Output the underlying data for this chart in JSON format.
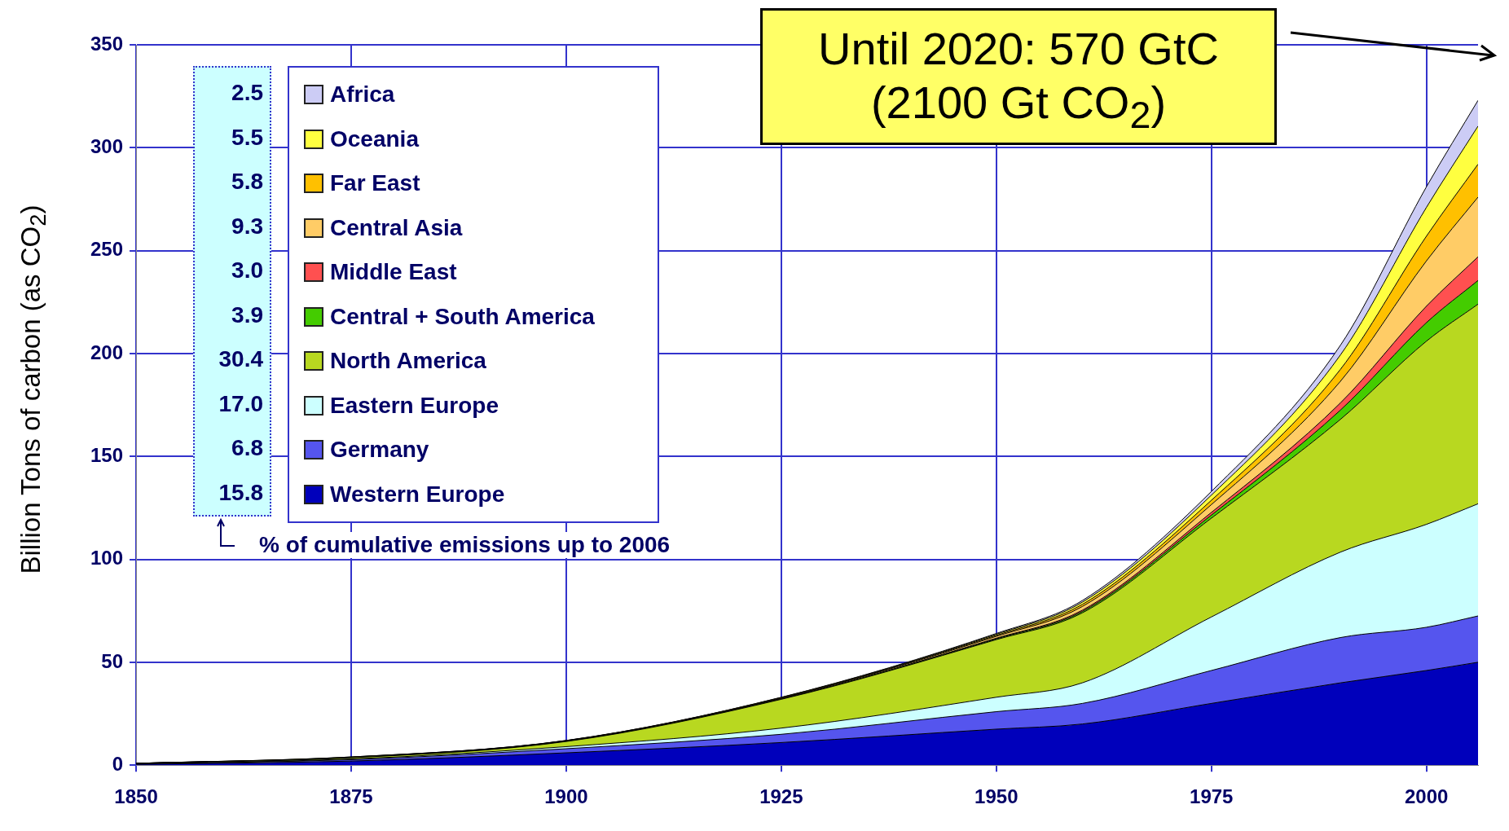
{
  "chart_data": {
    "type": "area",
    "ylabel": "Billion Tons of carbon (as CO$_{2}$)",
    "stacked": true,
    "grid": true,
    "legend": "top left",
    "x": [
      1850,
      1875,
      1900,
      1925,
      1950,
      1960,
      1975,
      1990,
      2000,
      2006
    ],
    "xlim": [
      1850,
      2006
    ],
    "xticks": [
      1850,
      1875,
      1900,
      1925,
      1950,
      1975,
      2000
    ],
    "ylim": [
      0,
      350
    ],
    "yticks": [
      0,
      50,
      100,
      150,
      200,
      250,
      300,
      350
    ],
    "series": [
      {
        "name": "Western Europe",
        "color": "#0000bb",
        "values": [
          0.4,
          2,
          6,
          11,
          17.5,
          20,
          30,
          40,
          46,
          50
        ]
      },
      {
        "name": "Germany",
        "color": "#5555ee",
        "values": [
          0.2,
          0.7,
          2,
          4,
          8.5,
          10,
          16,
          22,
          21,
          22.5
        ]
      },
      {
        "name": "Eastern Europe",
        "color": "#ccffff",
        "values": [
          0.1,
          0.3,
          1,
          3,
          7,
          10,
          26,
          41.5,
          50,
          54.5
        ]
      },
      {
        "name": "North America",
        "color": "#b8d820",
        "values": [
          0.1,
          0.6,
          2.5,
          14,
          28,
          34,
          48,
          64.5,
          89,
          97
        ]
      },
      {
        "name": "Central + South America",
        "color": "#44cc00",
        "values": [
          0,
          0.1,
          0.1,
          0.1,
          0.4,
          0.7,
          1.5,
          4.5,
          9,
          11.5
        ]
      },
      {
        "name": "Middle East",
        "color": "#ff5050",
        "values": [
          0,
          0,
          0,
          0.1,
          0.3,
          0.6,
          1.3,
          3.5,
          8,
          11.5
        ]
      },
      {
        "name": "Central Asia",
        "color": "#ffcc66",
        "values": [
          0.1,
          0.1,
          0.2,
          0.3,
          0.9,
          1.8,
          3.8,
          10.5,
          22,
          29
        ]
      },
      {
        "name": "Far East",
        "color": "#ffc000",
        "values": [
          0,
          0.1,
          0.1,
          0.2,
          0.5,
          1,
          2.1,
          5.8,
          12,
          16
        ]
      },
      {
        "name": "Oceania",
        "color": "#ffff40",
        "values": [
          0,
          0.1,
          0.1,
          0.2,
          0.5,
          1.1,
          2.5,
          7,
          14,
          18.5
        ]
      },
      {
        "name": "Africa",
        "color": "#ccccf5",
        "values": [
          0,
          0,
          0,
          0.1,
          0.4,
          0.8,
          1.8,
          4.7,
          10,
          12.5
        ]
      }
    ],
    "annotations": [
      "2.5",
      "5.5",
      "5.8",
      "9.3",
      "3.0",
      "3.9",
      "30.4",
      "17.0",
      "6.8",
      "15.8",
      "% of cumulative emissions up to 2006",
      "Until 2020: 570 GtC (2100 Gt CO$_{2}$)"
    ]
  }
}
